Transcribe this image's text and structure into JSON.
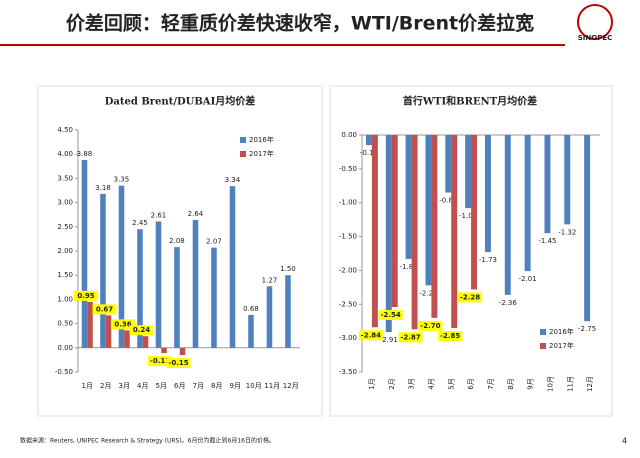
{
  "slide": {
    "title": "价差回顾：轻重质价差快速收窄，WTI/Brent价差拉宽",
    "logo": "SINOPEC",
    "source": "数据来源：Reuters, UNIPEC Research & Strategy (URS)。6月份为截止到6月16日的价格。",
    "page": "4"
  },
  "chart_data": [
    {
      "type": "bar",
      "title": "Dated Brent/DUBAI月均价差",
      "categories": [
        "1月",
        "2月",
        "3月",
        "4月",
        "5月",
        "6月",
        "7月",
        "8月",
        "9月",
        "10月",
        "11月",
        "12月"
      ],
      "series": [
        {
          "name": "2016年",
          "color": "#4f81bd",
          "values": [
            3.88,
            3.18,
            3.35,
            2.45,
            2.61,
            2.08,
            2.64,
            2.07,
            3.34,
            0.68,
            1.27,
            1.5
          ],
          "value_labels": [
            "3.88",
            "3.18",
            "3.35",
            "2.45",
            "2.61",
            "2.08",
            "2.64",
            "2.07",
            "3.34",
            "0.68",
            "1.27",
            "1.50"
          ]
        },
        {
          "name": "2017年",
          "color": "#c0504d",
          "values": [
            0.95,
            0.67,
            0.36,
            0.24,
            -0.11,
            -0.15,
            null,
            null,
            null,
            null,
            null,
            null
          ],
          "value_labels": [
            "0.95",
            "0.67",
            "0.36",
            "0.24",
            "-0.11",
            "-0.15",
            null,
            null,
            null,
            null,
            null,
            null
          ]
        }
      ],
      "ylim": [
        -0.5,
        4.5
      ],
      "yticks": [
        {
          "value": -0.5,
          "label": "-0.50"
        },
        {
          "value": 0,
          "label": "0.00"
        },
        {
          "value": 0.5,
          "label": "0.50"
        },
        {
          "value": 1,
          "label": "1.00"
        },
        {
          "value": 1.5,
          "label": "1.50"
        },
        {
          "value": 2,
          "label": "2.00"
        },
        {
          "value": 2.5,
          "label": "2.50"
        },
        {
          "value": 3,
          "label": "3.00"
        },
        {
          "value": 3.5,
          "label": "3.50"
        },
        {
          "value": 4,
          "label": "4.00"
        },
        {
          "value": 4.5,
          "label": "4.50"
        }
      ],
      "legend": "upper right"
    },
    {
      "type": "bar",
      "title": "首行WTI和BRENT月均价差",
      "categories": [
        "1月",
        "2月",
        "3月",
        "4月",
        "5月",
        "6月",
        "7月",
        "8月",
        "9月",
        "10月",
        "11月",
        "12月"
      ],
      "series": [
        {
          "name": "2016年",
          "color": "#4f81bd",
          "values": [
            -0.15,
            -2.91,
            -1.83,
            -2.22,
            -0.85,
            -1.08,
            -1.73,
            -2.36,
            -2.01,
            -1.45,
            -1.32,
            -2.75
          ]
        },
        {
          "name": "2017年",
          "color": "#c0504d",
          "values": [
            -2.84,
            -2.54,
            -2.87,
            -2.7,
            -2.85,
            -2.28,
            null,
            null,
            null,
            null,
            null,
            null
          ],
          "value_labels": [
            "-2.84",
            "-2.54",
            "-2.87",
            "-2.70",
            "-2.85",
            "-2.28",
            null,
            null,
            null,
            null,
            null,
            null
          ]
        }
      ],
      "ylim": [
        -3.5,
        0
      ],
      "yticks": [
        {
          "value": -3.5,
          "label": "-3.50"
        },
        {
          "value": -3,
          "label": "-3.00"
        },
        {
          "value": -2.5,
          "label": "-2.50"
        },
        {
          "value": -2,
          "label": "-2.00"
        },
        {
          "value": -1.5,
          "label": "-1.50"
        },
        {
          "value": -1,
          "label": "-1.00"
        },
        {
          "value": -0.5,
          "label": "-0.50"
        },
        {
          "value": 0,
          "label": "0.00"
        }
      ],
      "legend": "lower right"
    }
  ]
}
